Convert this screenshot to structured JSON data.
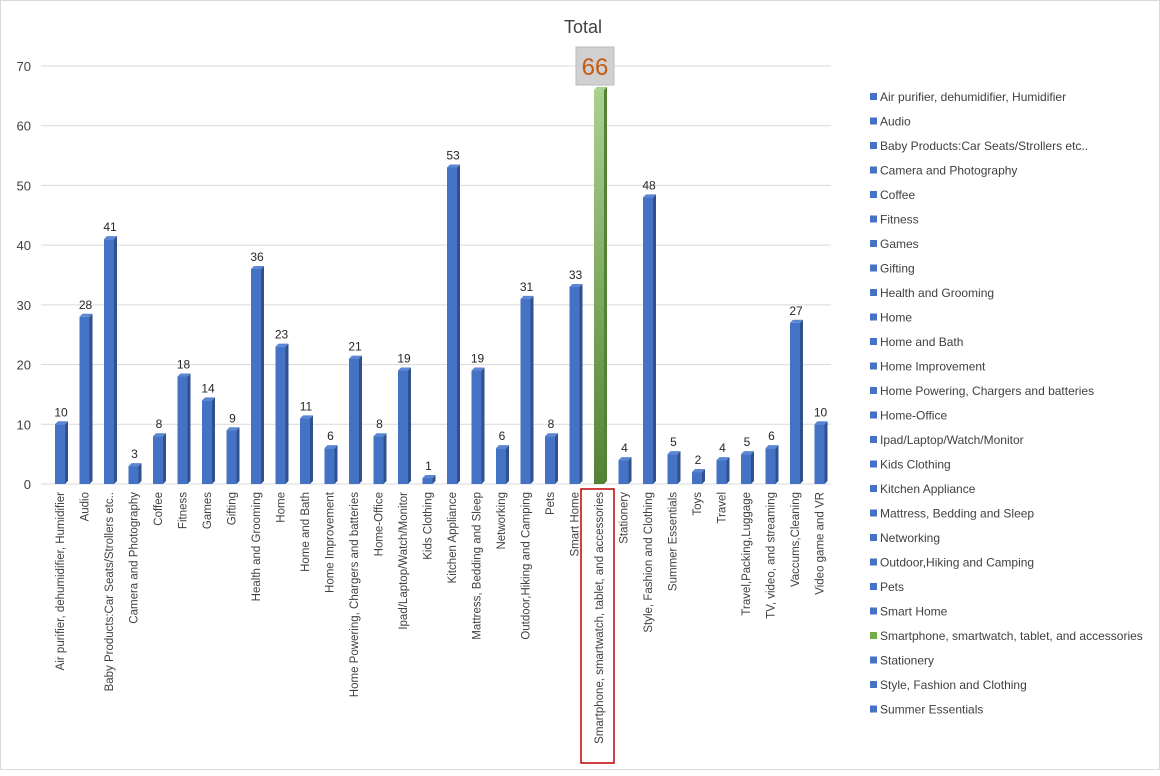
{
  "chart_data": {
    "type": "bar",
    "title": "Total",
    "xlabel": "",
    "ylabel": "",
    "ylim": [
      0,
      70
    ],
    "yticks": [
      0,
      10,
      20,
      30,
      40,
      50,
      60,
      70
    ],
    "grid": true,
    "legend_position": "right",
    "highlight_category": "Smartphone, smartwatch, tablet, and accessories",
    "categories": [
      "Air purifier, dehumidifier, Humidifier",
      "Audio",
      "Baby Products:Car Seats/Strollers etc..",
      "Camera and Photography",
      "Coffee",
      "Fitness",
      "Games",
      "Gifting",
      "Health and Grooming",
      "Home",
      "Home and Bath",
      "Home Improvement",
      "Home Powering, Chargers and batteries",
      "Home-Office",
      "Ipad/Laptop/Watch/Monitor",
      "Kids Clothing",
      "Kitchen Appliance",
      "Mattress, Bedding and Sleep",
      "Networking",
      "Outdoor,Hiking and Camping",
      "Pets",
      "Smart Home",
      "Smartphone, smartwatch, tablet, and accessories",
      "Stationery",
      "Style, Fashion and Clothing",
      "Summer Essentials",
      "Toys",
      "Travel",
      "Travel,Packing,Luggage",
      "TV, video, and streaming",
      "Vaccums,Cleaning",
      "Video game and VR"
    ],
    "values": [
      10,
      28,
      41,
      3,
      8,
      18,
      14,
      9,
      36,
      23,
      11,
      6,
      21,
      8,
      19,
      1,
      53,
      19,
      6,
      31,
      8,
      33,
      66,
      4,
      48,
      5,
      2,
      4,
      5,
      6,
      27,
      10
    ],
    "legend_entries": [
      "Air purifier, dehumidifier, Humidifier",
      "Audio",
      "Baby Products:Car Seats/Strollers etc..",
      "Camera and Photography",
      "Coffee",
      "Fitness",
      "Games",
      "Gifting",
      "Health and Grooming",
      "Home",
      "Home and Bath",
      "Home Improvement",
      "Home Powering, Chargers and batteries",
      "Home-Office",
      "Ipad/Laptop/Watch/Monitor",
      "Kids Clothing",
      "Kitchen Appliance",
      "Mattress, Bedding and Sleep",
      "Networking",
      "Outdoor,Hiking and Camping",
      "Pets",
      "Smart Home",
      "Smartphone, smartwatch, tablet, and accessories",
      "Stationery",
      "Style, Fashion and Clothing",
      "Summer Essentials"
    ],
    "colors": {
      "bar": "#4472c4",
      "bar_dark": "#2f528f",
      "highlight": "#70ad47",
      "highlight_light": "#a9d18e",
      "callout_text": "#c55a11",
      "outline": "#c00000"
    }
  }
}
